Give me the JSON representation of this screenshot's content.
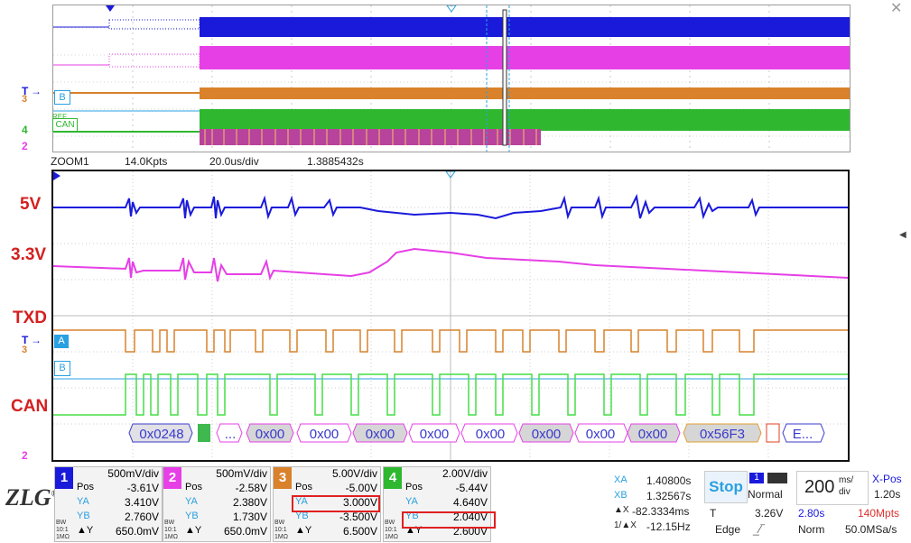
{
  "zoom": {
    "label": "ZOOM1",
    "points": "14.0Kpts",
    "timebase": "20.0us/div",
    "time": "1.3885432s"
  },
  "signals": {
    "v5": "5V",
    "v33": "3.3V",
    "txd": "TXD",
    "can": "CAN"
  },
  "markers": {
    "t": "T",
    "ch3": "3",
    "ch4": "4",
    "m2": "2",
    "A": "A",
    "B": "B",
    "ref": "REF",
    "can": "CAN"
  },
  "decode": [
    "0x0248",
    "...",
    "0x00",
    "0x00",
    "0x00",
    "0x00",
    "0x00",
    "0x00",
    "0x00",
    "0x00",
    "0x56F3",
    "E..."
  ],
  "channels": [
    {
      "num": "1",
      "color": "#1a1adb",
      "scale": "500mV/div",
      "pos_label": "Pos",
      "pos": "-3.61V",
      "ya_label": "YA",
      "ya": "3.410V",
      "yb_label": "YB",
      "yb": "2.760V",
      "dy_label": "▲Y",
      "dy": "650.0mV"
    },
    {
      "num": "2",
      "color": "#e63fe6",
      "scale": "500mV/div",
      "pos_label": "Pos",
      "pos": "-2.58V",
      "ya_label": "YA",
      "ya": "2.380V",
      "yb_label": "YB",
      "yb": "1.730V",
      "dy_label": "▲Y",
      "dy": "650.0mV"
    },
    {
      "num": "3",
      "color": "#d9822b",
      "scale": "5.00V/div",
      "pos_label": "Pos",
      "pos": "-5.00V",
      "ya_label": "YA",
      "ya": "3.000V",
      "yb_label": "YB",
      "yb": "-3.500V",
      "dy_label": "▲Y",
      "dy": "6.500V"
    },
    {
      "num": "4",
      "color": "#2fb82f",
      "scale": "2.00V/div",
      "pos_label": "Pos",
      "pos": "-5.44V",
      "ya_label": "YA",
      "ya": "4.640V",
      "yb_label": "YB",
      "yb": "2.040V",
      "dy_label": "▲Y",
      "dy": "2.600V"
    }
  ],
  "coupling": {
    "l1": "BW",
    "l2": "10:1",
    "l3": "1MΩ"
  },
  "logo": {
    "text": "ZLG",
    "mark": "®"
  },
  "cursor": {
    "xa_label": "XA",
    "xa": "1.40800s",
    "xb_label": "XB",
    "xb": "1.32567s",
    "dx_label": "▲X",
    "dx": "-82.3334ms",
    "fx_label": "1/▲X",
    "fx": "-12.15Hz"
  },
  "trigger": {
    "state": "Stop",
    "mode": "Normal",
    "ch": "1",
    "t_label": "T",
    "level": "3.26V",
    "type": "Edge"
  },
  "timebase": {
    "value": "200",
    "unit_top": "ms/",
    "unit_bot": "div",
    "xpos_label": "X-Pos",
    "xpos": "1.20s",
    "time": "2.80s",
    "mpts": "140Mpts",
    "acq": "Norm",
    "rate": "50.0MSa/s"
  },
  "colors": {
    "ch1": "#1a1adb",
    "ch2": "#e63fe6",
    "ch3": "#d9822b",
    "ch4": "#2fb82f",
    "refA": "#2aa0e0",
    "highlight": "#e02020"
  }
}
